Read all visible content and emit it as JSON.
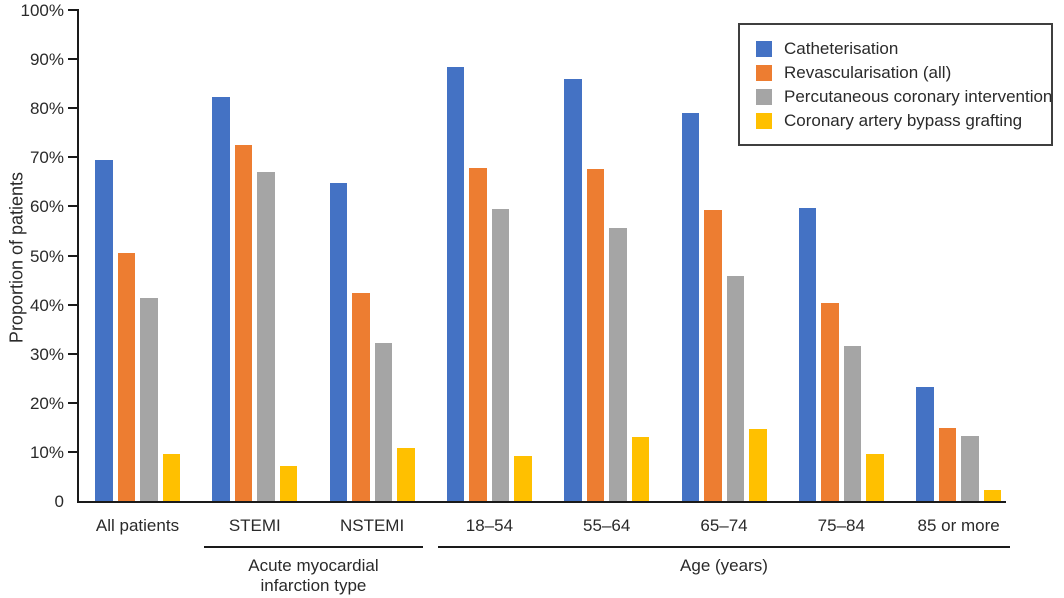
{
  "chart_data": {
    "type": "bar",
    "title": "",
    "ylabel": "Proportion of patients",
    "xlabel": "",
    "ylim": [
      0,
      100
    ],
    "grid": false,
    "legend_position": "top-right",
    "y_tick_labels": [
      "100%",
      "90%",
      "80%",
      "70%",
      "60%",
      "50%",
      "40%",
      "30%",
      "20%",
      "10%",
      "0"
    ],
    "y_tick_values": [
      100,
      90,
      80,
      70,
      60,
      50,
      40,
      30,
      20,
      10,
      0
    ],
    "categories": [
      "All patients",
      "STEMI",
      "NSTEMI",
      "18–54",
      "55–64",
      "65–74",
      "75–84",
      "85 or more"
    ],
    "series": [
      {
        "name": "Catheterisation",
        "color": "#4472C4",
        "values": [
          69.5,
          82.2,
          64.7,
          88.4,
          86.0,
          79.1,
          59.6,
          23.3
        ]
      },
      {
        "name": "Revascularisation (all)",
        "color": "#ED7D31",
        "values": [
          50.6,
          72.6,
          42.4,
          67.9,
          67.6,
          59.2,
          40.3,
          14.8
        ]
      },
      {
        "name": "Percutaneous coronary intervention",
        "color": "#A5A5A5",
        "values": [
          41.4,
          67.0,
          32.2,
          59.5,
          55.5,
          45.8,
          31.5,
          13.3
        ]
      },
      {
        "name": "Coronary artery bypass grafting",
        "color": "#FFC000",
        "values": [
          9.6,
          7.1,
          10.8,
          9.1,
          13.1,
          14.7,
          9.5,
          2.3
        ]
      }
    ],
    "category_groups": [
      {
        "lines": [
          "Acute myocardial",
          "infarction type"
        ],
        "start": 1,
        "end": 2
      },
      {
        "lines": [
          "Age (years)"
        ],
        "start": 3,
        "end": 7
      }
    ]
  }
}
